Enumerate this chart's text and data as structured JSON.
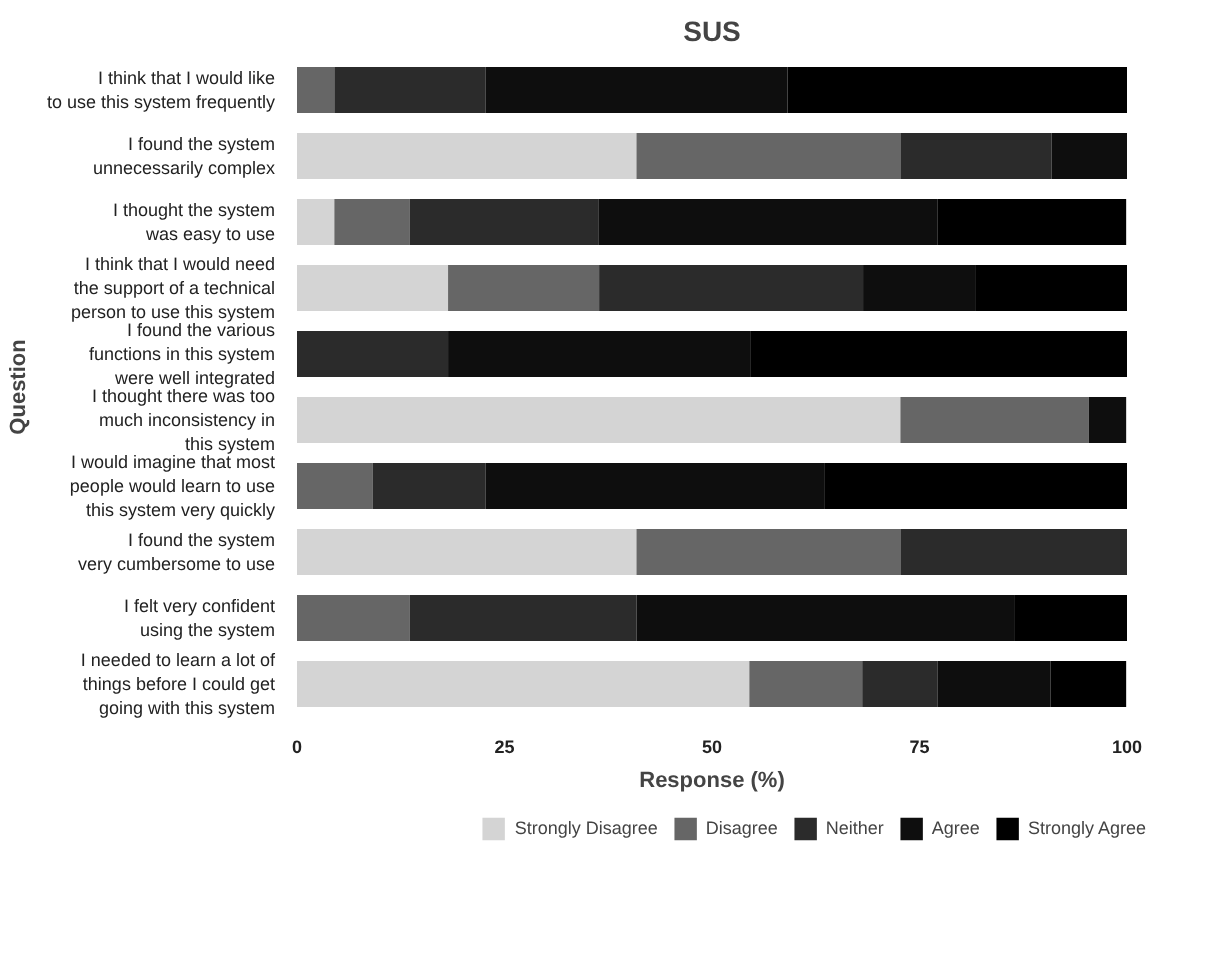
{
  "chart_data": {
    "type": "bar",
    "orientation": "horizontal",
    "stacked": true,
    "title": "SUS",
    "xlabel": "Response (%)",
    "ylabel": "Question",
    "categories": [
      "I think that I would like\nto use this system frequently",
      "I found the system\nunnecessarily complex",
      "I thought the system\nwas easy to use",
      "I think that I would need\nthe support of a technical\nperson to use this system",
      "I found the various\nfunctions in this system\nwere well integrated",
      "I thought there was too\nmuch inconsistency in\nthis system",
      "I would imagine that most\npeople would learn to use\nthis system very quickly",
      "I found the system\nvery cumbersome to use",
      "I felt very confident\nusing the system",
      "I needed to learn a lot of\nthings before I could get\ngoing with this system"
    ],
    "series": [
      {
        "name": "Strongly Disagree",
        "color": "#d4d4d4",
        "values": [
          0,
          40.9,
          4.5,
          18.2,
          0,
          72.7,
          0,
          40.9,
          0,
          54.5
        ]
      },
      {
        "name": "Disagree",
        "color": "#666666",
        "values": [
          4.5,
          31.8,
          9.1,
          18.2,
          0,
          22.7,
          9.1,
          31.8,
          13.6,
          13.6
        ]
      },
      {
        "name": "Neither",
        "color": "#2b2b2b",
        "values": [
          18.2,
          18.2,
          22.7,
          31.8,
          18.2,
          0,
          13.6,
          27.3,
          27.3,
          9.1
        ]
      },
      {
        "name": "Agree",
        "color": "#0e0e0e",
        "values": [
          36.4,
          9.1,
          40.9,
          13.6,
          36.4,
          4.5,
          40.9,
          0,
          45.5,
          13.6
        ]
      },
      {
        "name": "Strongly Agree",
        "color": "#000000",
        "values": [
          40.9,
          0,
          22.7,
          18.2,
          45.5,
          0,
          36.4,
          0,
          13.6,
          9.1
        ]
      }
    ],
    "xlim": [
      0,
      100
    ],
    "xticks": [
      0,
      25,
      50,
      75,
      100
    ],
    "grid": false,
    "legend": "bottom"
  }
}
